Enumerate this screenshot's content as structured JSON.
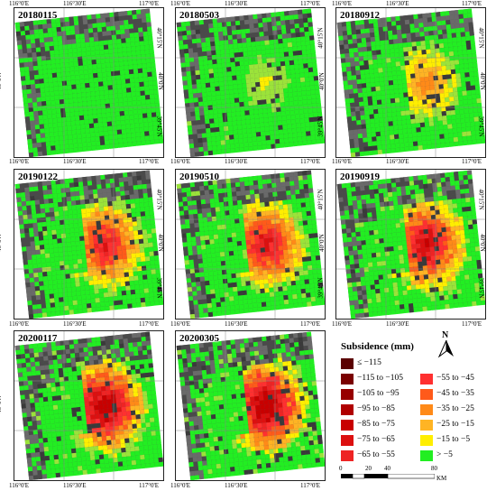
{
  "panels": [
    {
      "date": "20180115",
      "intensity": 0.0
    },
    {
      "date": "20180503",
      "intensity": 0.25
    },
    {
      "date": "20180912",
      "intensity": 0.45
    },
    {
      "date": "20190122",
      "intensity": 0.7
    },
    {
      "date": "20190510",
      "intensity": 0.75
    },
    {
      "date": "20190919",
      "intensity": 0.82
    },
    {
      "date": "20200117",
      "intensity": 0.92
    },
    {
      "date": "20200305",
      "intensity": 0.95
    }
  ],
  "axes": {
    "lon_ticks": [
      "116°0'E",
      "116°30'E",
      "117°0'E"
    ],
    "lat_ticks": [
      "40°15'N",
      "40°0'N",
      "39°45'N"
    ]
  },
  "legend": {
    "title": "Subsidence (mm)",
    "left": [
      {
        "label": "≤ −115",
        "color": "#5a0000"
      },
      {
        "label": "−115 to −105",
        "color": "#7a0000"
      },
      {
        "label": "−105 to −95",
        "color": "#970000"
      },
      {
        "label": "−95 to −85",
        "color": "#b00000"
      },
      {
        "label": "−85 to −75",
        "color": "#c80000"
      },
      {
        "label": "−75 to −65",
        "color": "#dc1010"
      },
      {
        "label": "−65 to −55",
        "color": "#ee2424"
      }
    ],
    "right": [
      {
        "label": "−55 to −45",
        "color": "#ff3030"
      },
      {
        "label": "−45 to −35",
        "color": "#ff5a1a"
      },
      {
        "label": "−35 to −25",
        "color": "#ff8a18"
      },
      {
        "label": "−25 to −15",
        "color": "#ffb424"
      },
      {
        "label": "−15 to −5",
        "color": "#ffee00"
      },
      {
        "label": "> −5",
        "color": "#22ee22"
      }
    ]
  },
  "north_label": "N",
  "scale": {
    "ticks": [
      "0",
      "20",
      "40",
      "80"
    ],
    "unit": "KM"
  }
}
